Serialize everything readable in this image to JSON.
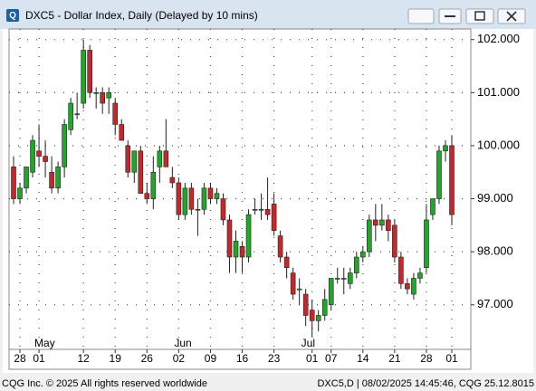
{
  "window_title": "DXC5 - Dollar Index, Daily (Delayed by 10 mins)",
  "footer": {
    "left": "CQG Inc. © 2025 All rights reserved worldwide",
    "right": "DXC5,D | 08/02/2025 14:45:46, CQG 25.12.8015"
  },
  "chart_data": {
    "type": "candlestick",
    "categories": [
      null,
      "28",
      null,
      null,
      "01",
      null,
      null,
      null,
      null,
      null,
      null,
      "12",
      null,
      null,
      null,
      null,
      "19",
      null,
      null,
      null,
      null,
      "26",
      null,
      null,
      null,
      null,
      "02",
      null,
      null,
      null,
      null,
      "09",
      null,
      null,
      null,
      null,
      "16",
      null,
      null,
      null,
      null,
      "23",
      null,
      null,
      null,
      null,
      null,
      "01",
      null,
      null,
      "07",
      null,
      null,
      null,
      null,
      "14",
      null,
      null,
      null,
      null,
      "21",
      null,
      null,
      null,
      null,
      "28",
      null,
      null,
      null,
      "01"
    ],
    "months": [
      {
        "label": "May",
        "at": 4
      },
      {
        "label": "Jun",
        "at": 26
      },
      {
        "label": "Jul",
        "at": 46
      }
    ],
    "open": [
      99.6,
      99.0,
      99.2,
      99.5,
      99.9,
      99.8,
      99.5,
      99.2,
      99.6,
      100.3,
      100.6,
      100.8,
      101.8,
      101.0,
      101.0,
      100.9,
      100.8,
      100.4,
      100.0,
      99.5,
      99.9,
      99.1,
      99.0,
      99.6,
      99.9,
      99.4,
      99.3,
      98.7,
      99.2,
      98.8,
      98.8,
      99.2,
      99.0,
      99.0,
      98.6,
      97.9,
      98.1,
      97.9,
      98.8,
      98.8,
      98.8,
      98.9,
      98.3,
      97.9,
      97.6,
      97.3,
      97.2,
      96.9,
      96.7,
      96.8,
      97.0,
      97.5,
      97.5,
      97.4,
      97.6,
      97.9,
      98.0,
      98.6,
      98.5,
      98.6,
      98.5,
      97.9,
      97.4,
      97.2,
      97.5,
      97.7,
      98.7,
      99.0,
      99.9,
      100.0
    ],
    "high": [
      99.8,
      99.3,
      99.6,
      100.2,
      100.4,
      100.1,
      99.8,
      99.7,
      100.5,
      100.9,
      101.0,
      102.0,
      101.9,
      101.1,
      101.1,
      101.1,
      100.9,
      100.5,
      100.1,
      99.9,
      100.0,
      99.3,
      99.8,
      100.0,
      100.5,
      99.6,
      99.4,
      99.3,
      99.3,
      99.0,
      99.3,
      99.3,
      99.2,
      99.1,
      98.7,
      98.4,
      98.2,
      98.8,
      99.0,
      99.1,
      99.4,
      99.1,
      98.4,
      98.0,
      97.7,
      97.5,
      97.3,
      97.1,
      96.9,
      97.3,
      97.5,
      97.7,
      97.7,
      97.7,
      98.0,
      98.1,
      98.7,
      98.9,
      98.9,
      98.7,
      98.6,
      98.0,
      97.5,
      97.6,
      97.7,
      98.9,
      99.0,
      100.0,
      100.1,
      100.2
    ],
    "low": [
      98.9,
      98.9,
      99.1,
      99.4,
      99.6,
      99.4,
      99.1,
      99.1,
      99.4,
      100.2,
      100.5,
      100.7,
      100.9,
      100.7,
      100.6,
      100.6,
      100.2,
      100.1,
      99.4,
      99.3,
      99.1,
      98.9,
      98.8,
      99.3,
      99.6,
      99.2,
      98.6,
      98.6,
      98.7,
      98.3,
      98.7,
      98.9,
      98.9,
      98.5,
      97.6,
      97.6,
      97.6,
      97.8,
      98.7,
      98.6,
      98.6,
      98.3,
      97.8,
      97.5,
      97.1,
      97.0,
      96.6,
      96.4,
      96.5,
      96.7,
      96.9,
      97.4,
      97.2,
      97.3,
      97.5,
      97.8,
      97.9,
      98.2,
      98.4,
      98.2,
      97.8,
      97.3,
      97.2,
      97.1,
      97.4,
      97.6,
      98.6,
      98.9,
      99.7,
      98.5
    ],
    "close": [
      99.0,
      99.2,
      99.6,
      100.1,
      99.8,
      99.7,
      99.2,
      99.6,
      100.4,
      100.8,
      100.6,
      101.8,
      101.0,
      101.0,
      100.8,
      101.0,
      100.4,
      100.1,
      99.5,
      99.9,
      99.1,
      99.0,
      99.5,
      99.9,
      99.6,
      99.3,
      98.7,
      99.2,
      98.8,
      98.8,
      99.2,
      99.0,
      99.1,
      98.6,
      97.9,
      98.2,
      97.9,
      98.7,
      98.8,
      98.8,
      98.7,
      98.4,
      97.9,
      97.7,
      97.2,
      97.3,
      96.8,
      96.7,
      96.8,
      97.1,
      97.5,
      97.5,
      97.5,
      97.6,
      97.9,
      98.0,
      98.6,
      98.5,
      98.6,
      98.4,
      97.9,
      97.4,
      97.3,
      97.5,
      97.6,
      98.6,
      99.0,
      99.9,
      100.0,
      98.7
    ],
    "up_color": "#22a52a",
    "down_color": "#c8262b",
    "ylim": [
      96.16,
      102.2
    ],
    "yticks": [
      {
        "value": 97,
        "label": "97.000"
      },
      {
        "value": 98,
        "label": "98.000"
      },
      {
        "value": 99,
        "label": "99.000"
      },
      {
        "value": 100,
        "label": "100.000"
      },
      {
        "value": 101,
        "label": "101.000"
      },
      {
        "value": 102,
        "label": "102.000"
      }
    ],
    "grid": true
  }
}
